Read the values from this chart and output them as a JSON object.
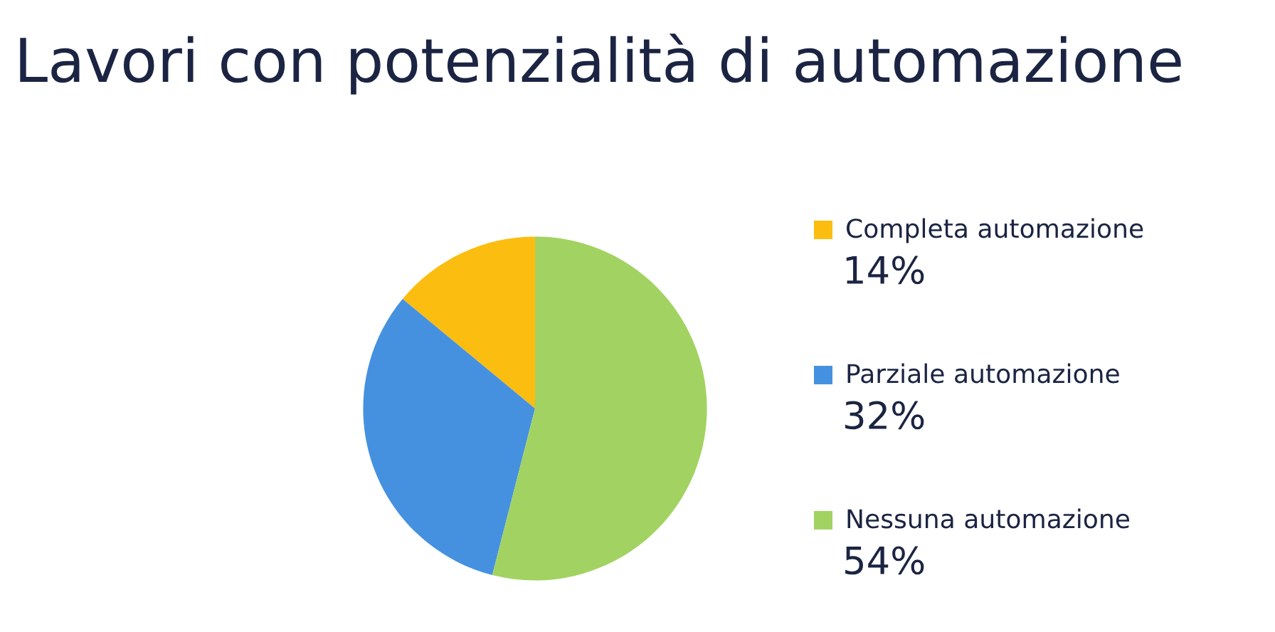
{
  "chart_data": {
    "type": "pie",
    "title": "Lavori con potenzialità di automazione",
    "categories": [
      "Completa automazione",
      "Parziale automazione",
      "Nessuna automazione"
    ],
    "values": [
      14,
      32,
      54
    ],
    "colors": [
      "#fbbd10",
      "#4591e0",
      "#a2d362"
    ],
    "value_labels": [
      "14%",
      "32%",
      "54%"
    ],
    "legend": "right"
  }
}
